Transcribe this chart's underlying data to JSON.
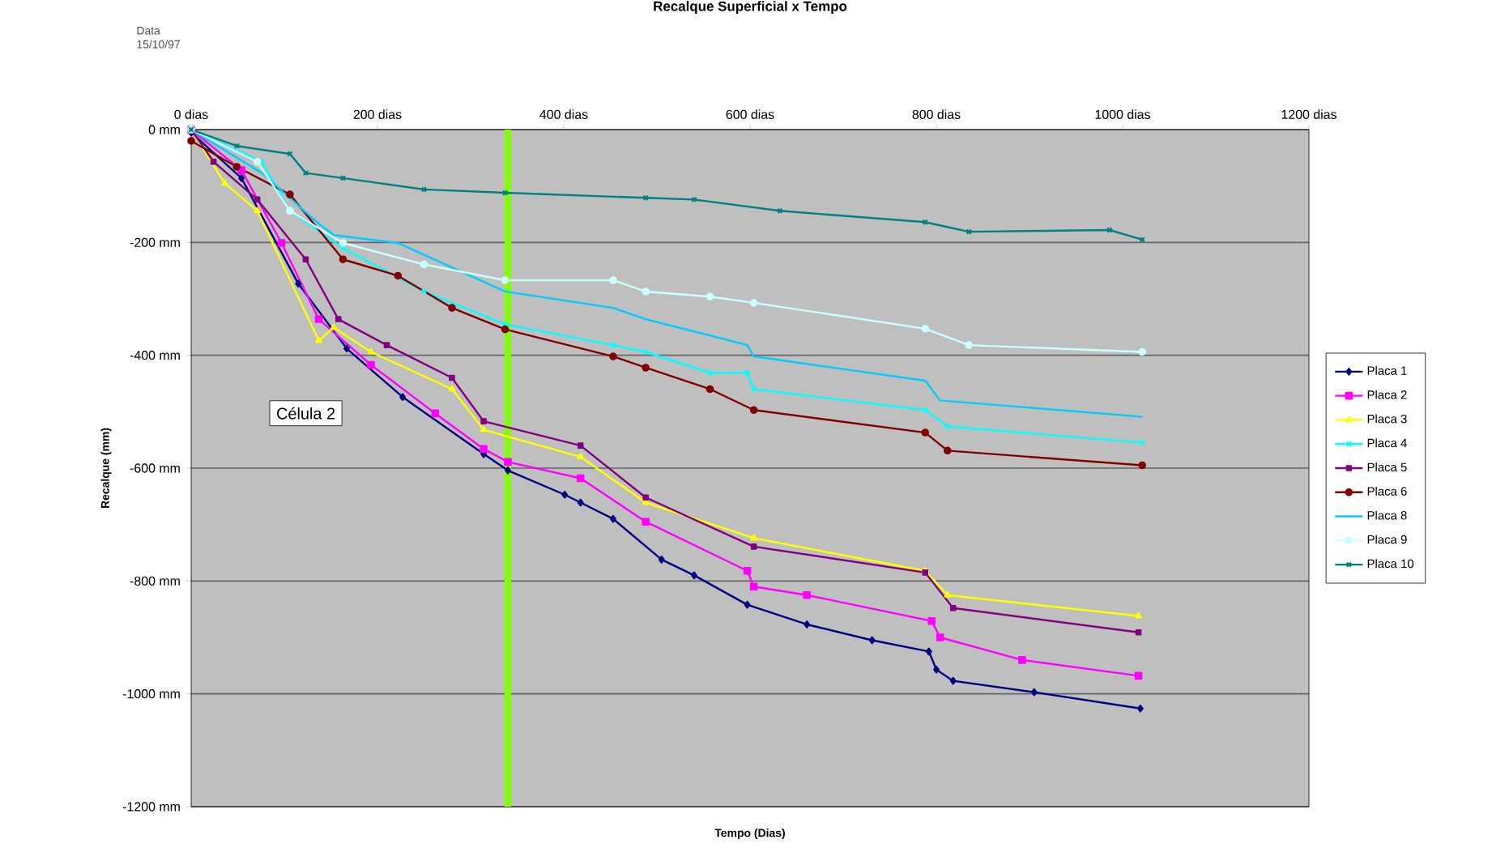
{
  "chart_data": {
    "type": "line",
    "title": "Recalque Superficial x Tempo",
    "xlabel": "Tempo (Dias)",
    "ylabel": "Recalque (mm)",
    "annotations": [
      "Data 15/10/97",
      "Célula 2"
    ],
    "xlim": [
      0,
      1200
    ],
    "ylim": [
      -1200,
      0
    ],
    "xticks": [
      {
        "value": 0,
        "label": "0 dias"
      },
      {
        "value": 200,
        "label": "200 dias"
      },
      {
        "value": 400,
        "label": "400 dias"
      },
      {
        "value": 600,
        "label": "600 dias"
      },
      {
        "value": 800,
        "label": "800 dias"
      },
      {
        "value": 1000,
        "label": "1000 dias"
      },
      {
        "value": 1200,
        "label": "1200 dias"
      }
    ],
    "yticks": [
      {
        "value": 0,
        "label": "0 mm"
      },
      {
        "value": -200,
        "label": "-200 mm"
      },
      {
        "value": -400,
        "label": "-400 mm"
      },
      {
        "value": -600,
        "label": "-600 mm"
      },
      {
        "value": -800,
        "label": "-800 mm"
      },
      {
        "value": -1000,
        "label": "-1000 mm"
      },
      {
        "value": -1200,
        "label": "-1200 mm"
      }
    ],
    "grid": "y",
    "legend": "right",
    "tick_labels": "xy",
    "ref_lines": [
      {
        "axis": "x",
        "value": 340,
        "color": "#80ff00"
      }
    ],
    "series": [
      {
        "name": "Placa 1",
        "color": "#000080",
        "marker": "diamond",
        "x": [
          0,
          54,
          115,
          167,
          227,
          314,
          340,
          401,
          418,
          453,
          505,
          540,
          597,
          661,
          731,
          792,
          800,
          818,
          905,
          1019
        ],
        "values": [
          -5,
          -86,
          -273,
          -388,
          -474,
          -575,
          -604,
          -647,
          -661,
          -690,
          -762,
          -790,
          -842,
          -877,
          -905,
          -925,
          -957,
          -977,
          -997,
          -1026
        ]
      },
      {
        "name": "Placa 2",
        "color": "#ff00ff",
        "marker": "square",
        "x": [
          0,
          54,
          97,
          137,
          193,
          262,
          314,
          340,
          418,
          488,
          597,
          604,
          661,
          795,
          804,
          892,
          1017
        ],
        "values": [
          0,
          -72,
          -201,
          -336,
          -417,
          -503,
          -566,
          -589,
          -618,
          -695,
          -782,
          -810,
          -825,
          -871,
          -900,
          -940,
          -968
        ]
      },
      {
        "name": "Placa 3",
        "color": "#ffff00",
        "marker": "triangle",
        "x": [
          0,
          36,
          71,
          137,
          153,
          193,
          280,
          314,
          418,
          488,
          604,
          788,
          812,
          1017
        ],
        "values": [
          0,
          -95,
          -144,
          -374,
          -351,
          -394,
          -460,
          -532,
          -580,
          -661,
          -724,
          -782,
          -825,
          -862
        ]
      },
      {
        "name": "Placa 4",
        "color": "#00ffff",
        "marker": "cross",
        "x": [
          0,
          76,
          106,
          163,
          250,
          337,
          453,
          488,
          557,
          597,
          604,
          788,
          812,
          1021
        ],
        "values": [
          0,
          -57,
          -144,
          -210,
          -287,
          -345,
          -382,
          -394,
          -431,
          -431,
          -460,
          -497,
          -526,
          -555
        ]
      },
      {
        "name": "Placa 5",
        "color": "#800080",
        "marker": "square",
        "x": [
          0,
          24,
          71,
          123,
          158,
          210,
          280,
          314,
          418,
          488,
          604,
          788,
          818,
          1017
        ],
        "values": [
          0,
          -57,
          -124,
          -230,
          -336,
          -382,
          -440,
          -517,
          -560,
          -652,
          -739,
          -785,
          -848,
          -891
        ]
      },
      {
        "name": "Placa 6",
        "color": "#800000",
        "marker": "circle",
        "x": [
          0,
          49,
          106,
          163,
          222,
          280,
          337,
          453,
          488,
          557,
          604,
          788,
          812,
          1021
        ],
        "values": [
          -20,
          -66,
          -115,
          -230,
          -259,
          -316,
          -354,
          -402,
          -422,
          -460,
          -497,
          -537,
          -569,
          -595
        ]
      },
      {
        "name": "Placa 8",
        "color": "#00ccff",
        "marker": "none",
        "x": [
          0,
          76,
          135,
          153,
          222,
          337,
          453,
          488,
          557,
          597,
          604,
          788,
          804,
          1021
        ],
        "values": [
          0,
          -77,
          -164,
          -187,
          -201,
          -287,
          -316,
          -336,
          -365,
          -382,
          -402,
          -445,
          -480,
          -509
        ]
      },
      {
        "name": "Placa 9",
        "color": "#ccffff",
        "marker": "circle",
        "x": [
          0,
          71,
          106,
          163,
          250,
          337,
          453,
          488,
          557,
          604,
          788,
          835,
          1021
        ],
        "values": [
          0,
          -57,
          -144,
          -201,
          -239,
          -267,
          -267,
          -287,
          -296,
          -307,
          -353,
          -382,
          -394
        ]
      },
      {
        "name": "Placa 10",
        "color": "#008080",
        "marker": "cross",
        "x": [
          0,
          49,
          106,
          123,
          163,
          250,
          337,
          488,
          540,
          632,
          788,
          835,
          986,
          1021
        ],
        "values": [
          0,
          -29,
          -43,
          -77,
          -86,
          -106,
          -112,
          -121,
          -124,
          -144,
          -164,
          -181,
          -178,
          -195
        ]
      }
    ]
  }
}
